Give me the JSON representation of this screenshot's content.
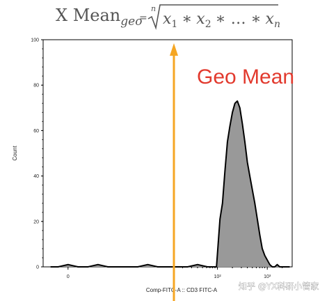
{
  "formula": {
    "lhs_main": "X Mean",
    "lhs_sub": "geo",
    "equals": "=",
    "root_index": "n",
    "terms": [
      {
        "base": "x",
        "sub": "1"
      },
      {
        "op": "∗"
      },
      {
        "base": "x",
        "sub": "2"
      },
      {
        "op": "∗ … ∗"
      },
      {
        "base": "x",
        "sub": "n"
      }
    ]
  },
  "annotation": {
    "text": "Geo Mean",
    "color": "#e23a2e",
    "arrow_color": "#f5a623",
    "arrow_x": 140
  },
  "watermark": {
    "text": "知乎 @YX科研小管家"
  },
  "chart_data": {
    "type": "area",
    "title": "",
    "xlabel": "Comp-FITC-A :: CD3 FITC-A",
    "ylabel": "Count",
    "ylim": [
      0,
      100
    ],
    "y_ticks": [
      0,
      20,
      40,
      60,
      80,
      100
    ],
    "x_scale": "biexponential",
    "x_ticks": [
      {
        "pos": -1,
        "label": "0"
      },
      {
        "pos": 2,
        "label": "10²"
      },
      {
        "pos": 3,
        "label": "10³"
      }
    ],
    "x_range": [
      -1.5,
      3.5
    ],
    "fill_color": "#999999",
    "line_color": "#000000",
    "series": [
      {
        "name": "",
        "x": [
          -1.35,
          -1.2,
          -1.0,
          -0.8,
          -0.6,
          -0.4,
          -0.2,
          0.0,
          0.2,
          0.4,
          0.6,
          0.8,
          1.0,
          1.2,
          1.4,
          1.6,
          1.8,
          1.9,
          1.98,
          2.05,
          2.1,
          2.15,
          2.2,
          2.25,
          2.3,
          2.35,
          2.4,
          2.45,
          2.5,
          2.55,
          2.6,
          2.65,
          2.7,
          2.75,
          2.8,
          2.85,
          2.9,
          2.95,
          3.0,
          3.05,
          3.1,
          3.15,
          3.2,
          3.25,
          3.3,
          3.35,
          3.4,
          3.45
        ],
        "values": [
          0,
          0,
          1,
          0,
          0,
          1,
          0,
          0,
          0,
          0,
          1,
          0,
          0,
          0,
          0,
          1,
          0,
          0,
          0,
          21,
          28,
          42,
          55,
          62,
          68,
          72,
          73,
          70,
          63,
          55,
          46,
          40,
          34,
          28,
          21,
          14,
          8,
          5,
          3,
          1,
          0,
          0,
          1,
          0,
          0,
          0,
          0,
          0
        ]
      }
    ]
  }
}
